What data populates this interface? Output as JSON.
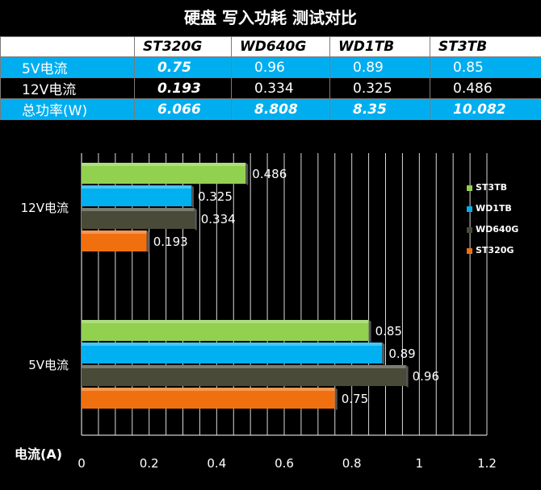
{
  "title": "硬盘 写入功耗 测试对比",
  "table": {
    "headers": [
      "",
      "ST320G",
      "WD640G",
      "WD1TB",
      "ST3TB"
    ],
    "rows": [
      {
        "label": "5V电流",
        "values": [
          "0.75",
          "0.96",
          "0.89",
          "0.85"
        ]
      },
      {
        "label": "12V电流",
        "values": [
          "0.193",
          "0.334",
          "0.325",
          "0.486"
        ]
      },
      {
        "label": "总功率(W)",
        "values": [
          "6.066",
          "8.808",
          "8.35",
          "10.082"
        ]
      }
    ]
  },
  "chart_data": {
    "type": "bar",
    "orientation": "horizontal",
    "title": "硬盘 写入功耗 测试对比",
    "xlabel": "电流(A)",
    "ylabel": "",
    "categories": [
      "12V电流",
      "5V电流"
    ],
    "series": [
      {
        "name": "ST3TB",
        "color": "#92d050",
        "values": [
          0.486,
          0.85
        ],
        "labels": [
          "0.486",
          "0.85"
        ]
      },
      {
        "name": "WD1TB",
        "color": "#00b0f0",
        "values": [
          0.325,
          0.89
        ],
        "labels": [
          "0.325",
          "0.89"
        ]
      },
      {
        "name": "WD640G",
        "color": "#4a4a38",
        "values": [
          0.334,
          0.96
        ],
        "labels": [
          "0.334",
          "0.96"
        ]
      },
      {
        "name": "ST320G",
        "color": "#f07010",
        "values": [
          0.193,
          0.75
        ],
        "labels": [
          "0.193",
          "0.75"
        ]
      }
    ],
    "xlim": [
      0,
      1.2
    ],
    "xticks": [
      "0",
      "0.2",
      "0.4",
      "0.6",
      "0.8",
      "1",
      "1.2"
    ],
    "grid": true,
    "legend_position": "right"
  }
}
